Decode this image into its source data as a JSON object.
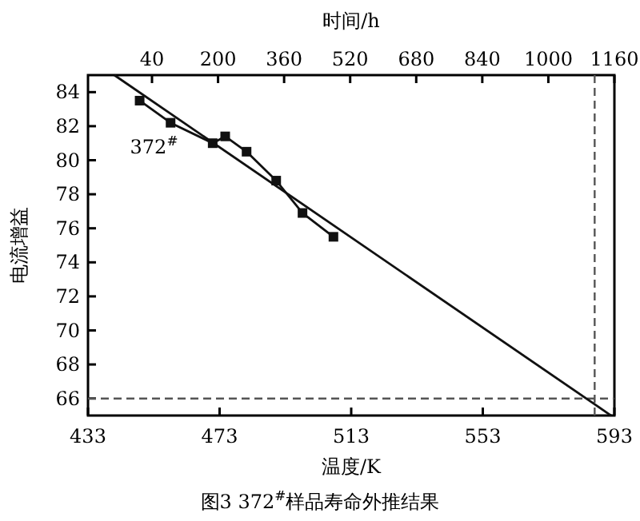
{
  "chart_data": {
    "type": "line",
    "xlabel": "温度/K",
    "ylabel": "电流增益",
    "x2label": "时间/h",
    "xlim": [
      433,
      593
    ],
    "xticks": [
      433,
      473,
      513,
      553,
      593
    ],
    "ylim": [
      65,
      85
    ],
    "yticks": [
      66,
      68,
      70,
      72,
      74,
      76,
      78,
      80,
      82,
      84
    ],
    "x2lim": [
      -115,
      1160
    ],
    "x2ticks": [
      40,
      200,
      360,
      520,
      680,
      840,
      1000,
      1160
    ],
    "series": [
      {
        "name": "372$^{#}$",
        "color": "#111111",
        "marker": "square",
        "x": [
          448.7,
          458.1,
          470.9,
          474.7,
          481.2,
          490.2,
          498.2,
          507.6
        ],
        "values": [
          83.5,
          82.2,
          81.0,
          81.4,
          80.5,
          78.8,
          76.9,
          75.5
        ]
      },
      {
        "color": "#111111",
        "marker": "none",
        "x": [
          441,
          592
        ],
        "values": [
          85,
          65
        ]
      }
    ],
    "ref_lines": [
      {
        "axis": "y",
        "value": 66,
        "line_style": "dashed",
        "color": "#555555"
      },
      {
        "axis": "x",
        "value": 587,
        "line_style": "dashed",
        "color": "#555555"
      }
    ],
    "grid": false,
    "annotations": [
      "图3 372$^{#}$样品寿命外推结果"
    ]
  }
}
